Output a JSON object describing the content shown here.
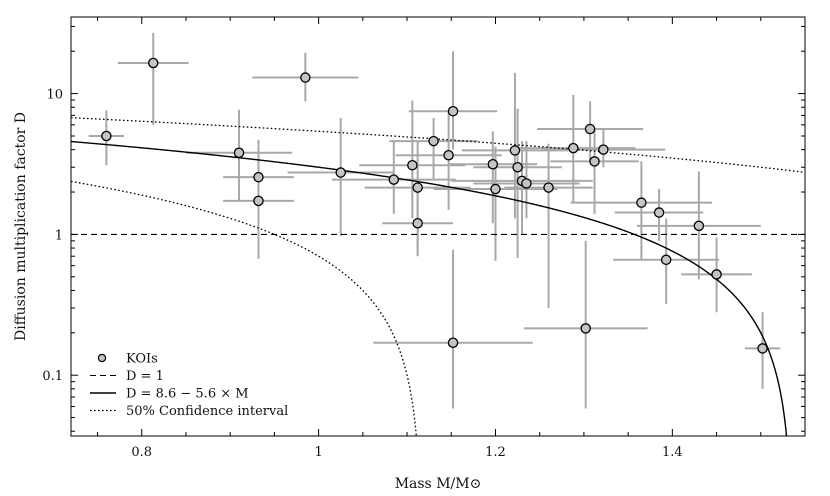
{
  "chart_data": {
    "type": "scatter",
    "title": "",
    "xlabel": "Mass M/M⊙",
    "ylabel": "Diffusion multiplication factor D",
    "xlim": [
      0.72,
      1.55
    ],
    "ylim": [
      0.037,
      35
    ],
    "yscale": "log",
    "x_ticks": [
      0.8,
      1.0,
      1.2,
      1.4
    ],
    "x_tick_labels": [
      "0.8",
      "1",
      "1.2",
      "1.4"
    ],
    "y_ticks": [
      0.1,
      1,
      10
    ],
    "y_tick_labels": [
      "0.1",
      "1",
      "10"
    ],
    "legend": {
      "position": "bottom-left",
      "entries": [
        {
          "label": "KOIs",
          "style": "marker"
        },
        {
          "label": "D = 1",
          "style": "dashed"
        },
        {
          "label": "D = 8.6 − 5.6 × M",
          "style": "solid"
        },
        {
          "label": "50% Confidence interval",
          "style": "dotted"
        }
      ]
    },
    "series": [
      {
        "name": "KOIs",
        "points": [
          {
            "x": 0.76,
            "y": 5.0,
            "xerr": [
              0.02,
              0.02
            ],
            "yerr": [
              3.1,
              7.6
            ]
          },
          {
            "x": 0.813,
            "y": 16.5,
            "xerr": [
              0.04,
              0.04
            ],
            "yerr": [
              6.0,
              27.0
            ]
          },
          {
            "x": 0.91,
            "y": 3.8,
            "xerr": [
              0.06,
              0.06
            ],
            "yerr": [
              1.75,
              7.7
            ]
          },
          {
            "x": 0.932,
            "y": 2.55,
            "xerr": [
              0.04,
              0.04
            ],
            "yerr": [
              1.75,
              4.7
            ]
          },
          {
            "x": 0.932,
            "y": 1.73,
            "xerr": [
              0.04,
              0.04
            ],
            "yerr": [
              0.67,
              3.3
            ]
          },
          {
            "x": 0.985,
            "y": 13.0,
            "xerr": [
              0.06,
              0.06
            ],
            "yerr": [
              8.8,
              19.5
            ]
          },
          {
            "x": 1.025,
            "y": 2.75,
            "xerr": [
              0.06,
              0.06
            ],
            "yerr": [
              0.97,
              6.7
            ]
          },
          {
            "x": 1.085,
            "y": 2.45,
            "xerr": [
              0.07,
              0.07
            ],
            "yerr": [
              1.4,
              4.6
            ]
          },
          {
            "x": 1.106,
            "y": 3.1,
            "xerr": [
              0.06,
              0.06
            ],
            "yerr": [
              1.3,
              8.9
            ]
          },
          {
            "x": 1.112,
            "y": 2.15,
            "xerr": [
              0.06,
              0.06
            ],
            "yerr": [
              0.72,
              4.6
            ]
          },
          {
            "x": 1.112,
            "y": 1.2,
            "xerr": [
              0.04,
              0.04
            ],
            "yerr": [
              0.7,
              2.2
            ]
          },
          {
            "x": 1.13,
            "y": 4.6,
            "xerr": [
              0.05,
              0.05
            ],
            "yerr": [
              2.5,
              6.7
            ]
          },
          {
            "x": 1.147,
            "y": 3.65,
            "xerr": [
              0.06,
              0.06
            ],
            "yerr": [
              1.5,
              7.6
            ]
          },
          {
            "x": 1.152,
            "y": 7.5,
            "xerr": [
              0.05,
              0.05
            ],
            "yerr": [
              4.0,
              20.0
            ]
          },
          {
            "x": 1.152,
            "y": 0.17,
            "xerr": [
              0.09,
              0.09
            ],
            "yerr": [
              0.058,
              0.78
            ]
          },
          {
            "x": 1.197,
            "y": 3.15,
            "xerr": [
              0.05,
              0.05
            ],
            "yerr": [
              1.2,
              5.4
            ]
          },
          {
            "x": 1.2,
            "y": 2.1,
            "xerr": [
              0.07,
              0.07
            ],
            "yerr": [
              0.65,
              4.2
            ]
          },
          {
            "x": 1.222,
            "y": 3.95,
            "xerr": [
              0.06,
              0.06
            ],
            "yerr": [
              1.3,
              14.0
            ]
          },
          {
            "x": 1.225,
            "y": 3.0,
            "xerr": [
              0.05,
              0.05
            ],
            "yerr": [
              0.68,
              7.8
            ]
          },
          {
            "x": 1.23,
            "y": 2.4,
            "xerr": [
              0.08,
              0.08
            ],
            "yerr": [
              1.0,
              4.6
            ]
          },
          {
            "x": 1.235,
            "y": 2.3,
            "xerr": [
              0.06,
              0.06
            ],
            "yerr": [
              1.3,
              4.6
            ]
          },
          {
            "x": 1.26,
            "y": 2.15,
            "xerr": [
              0.05,
              0.05
            ],
            "yerr": [
              0.3,
              4.4
            ]
          },
          {
            "x": 1.288,
            "y": 4.1,
            "xerr": [
              0.07,
              0.07
            ],
            "yerr": [
              1.7,
              9.8
            ]
          },
          {
            "x": 1.302,
            "y": 0.215,
            "xerr": [
              0.07,
              0.07
            ],
            "yerr": [
              0.058,
              0.9
            ]
          },
          {
            "x": 1.307,
            "y": 5.6,
            "xerr": [
              0.06,
              0.06
            ],
            "yerr": [
              3.4,
              8.8
            ]
          },
          {
            "x": 1.312,
            "y": 3.3,
            "xerr": [
              0.05,
              0.05
            ],
            "yerr": [
              1.4,
              5.6
            ]
          },
          {
            "x": 1.322,
            "y": 4.0,
            "xerr": [
              0.07,
              0.07
            ],
            "yerr": [
              3.0,
              5.6
            ]
          },
          {
            "x": 1.365,
            "y": 1.68,
            "xerr": [
              0.08,
              0.08
            ],
            "yerr": [
              0.67,
              3.3
            ]
          },
          {
            "x": 1.385,
            "y": 1.43,
            "xerr": [
              0.05,
              0.05
            ],
            "yerr": [
              0.9,
              2.1
            ]
          },
          {
            "x": 1.393,
            "y": 0.66,
            "xerr": [
              0.06,
              0.06
            ],
            "yerr": [
              0.32,
              1.3
            ]
          },
          {
            "x": 1.43,
            "y": 1.15,
            "xerr": [
              0.07,
              0.07
            ],
            "yerr": [
              0.48,
              2.8
            ]
          },
          {
            "x": 1.45,
            "y": 0.52,
            "xerr": [
              0.04,
              0.04
            ],
            "yerr": [
              0.28,
              0.95
            ]
          },
          {
            "x": 1.502,
            "y": 0.155,
            "xerr": [
              0.02,
              0.02
            ],
            "yerr": [
              0.08,
              0.28
            ]
          }
        ]
      },
      {
        "name": "D = 1",
        "style": "dashed",
        "constant": 1
      },
      {
        "name": "D = 8.6 − 5.6 × M",
        "style": "solid",
        "equation": {
          "intercept": 8.6,
          "slope": -5.6
        }
      },
      {
        "name": "50% Confidence interval (upper)",
        "style": "dotted",
        "equation": {
          "intercept": 10.2,
          "slope": -4.8
        }
      },
      {
        "name": "50% Confidence interval (lower)",
        "style": "dotted",
        "equation": {
          "intercept": 6.7,
          "slope": -6.0
        }
      }
    ]
  }
}
